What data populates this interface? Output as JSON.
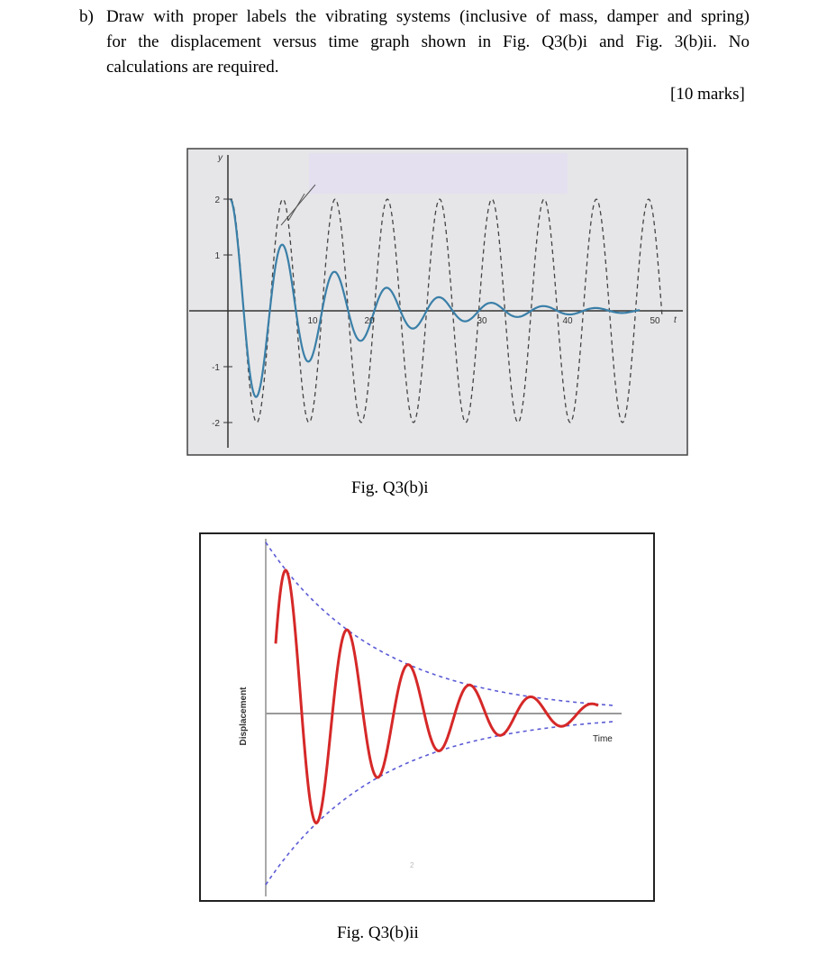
{
  "question": {
    "label": "b)",
    "lines": [
      "Draw with proper labels the vibrating systems (inclusive of mass, damper and spring)",
      "for the displacement versus time graph shown in Fig. Q3(b)i and Fig. 3(b)ii. No",
      "calculations are required."
    ],
    "marks": "[10 marks]"
  },
  "figure1": {
    "caption": "Fig. Q3(b)i",
    "y_axis_label": "y",
    "x_axis_label": "t",
    "y_ticks": [
      "2",
      "1",
      "-1",
      "-2"
    ],
    "x_ticks": [
      "10",
      "20",
      "30",
      "40",
      "50"
    ]
  },
  "figure2": {
    "caption": "Fig. Q3(b)ii",
    "y_axis_label": "Displacement",
    "x_axis_label": "Time",
    "stray_mark": "2"
  }
}
